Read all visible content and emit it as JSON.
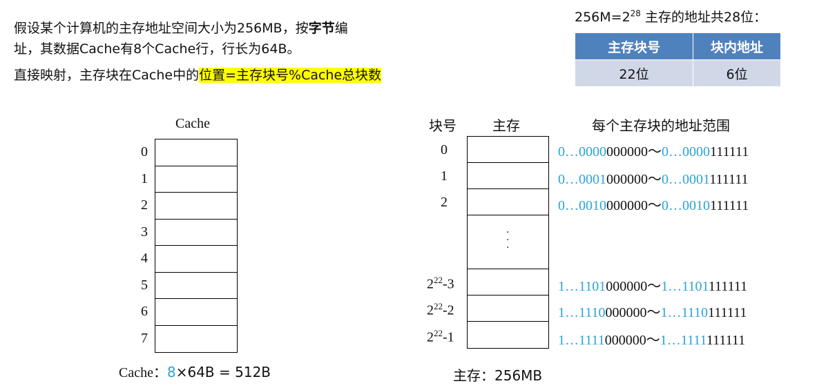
{
  "intro": {
    "line1_a": "假设某个计算机的主存地址空间大小为256MB，按",
    "line1_bold": "字节",
    "line1_b": "编",
    "line2": "址，其数据Cache有8个Cache行，行长为64B。"
  },
  "mapping": {
    "prefix": "直接映射，主存块在Cache中的",
    "highlight": "位置=主存块号%Cache总块数"
  },
  "address": {
    "title_a": "256M=2",
    "title_exp": "28",
    "title_b": " 主存的地址共28位：",
    "headers": [
      "主存块号",
      "块内地址"
    ],
    "values": [
      "22位",
      "6位"
    ]
  },
  "cache": {
    "title": "Cache",
    "rows": [
      "0",
      "1",
      "2",
      "3",
      "4",
      "5",
      "6",
      "7"
    ],
    "caption_prefix": "Cache：",
    "caption_num": "8",
    "caption_suffix": "×64B = 512B"
  },
  "memory": {
    "col_block": "块号",
    "col_mem": "主存",
    "col_range": "每个主存块的地址范围",
    "caption": "主存：256MB",
    "rows": [
      {
        "block": "0",
        "hi_a": "0…0000",
        "lo_a": "000000",
        "hi_b": "0…0000",
        "lo_b": "111111"
      },
      {
        "block": "1",
        "hi_a": "0…0001",
        "lo_a": "000000",
        "hi_b": "0…0001",
        "lo_b": "111111"
      },
      {
        "block": "2",
        "hi_a": "0…0010",
        "lo_a": "000000",
        "hi_b": "0…0010",
        "lo_b": "111111"
      },
      {
        "block_base": "2",
        "block_exp": "22",
        "block_tail": "-3",
        "hi_a": "1…1101",
        "lo_a": "000000",
        "hi_b": "1…1101",
        "lo_b": "111111"
      },
      {
        "block_base": "2",
        "block_exp": "22",
        "block_tail": "-2",
        "hi_a": "1…1110",
        "lo_a": "000000",
        "hi_b": "1…1110",
        "lo_b": "111111"
      },
      {
        "block_base": "2",
        "block_exp": "22",
        "block_tail": "-1",
        "hi_a": "1…1111",
        "lo_a": "000000",
        "hi_b": "1…1111",
        "lo_b": "111111"
      }
    ],
    "tilde": "～"
  }
}
